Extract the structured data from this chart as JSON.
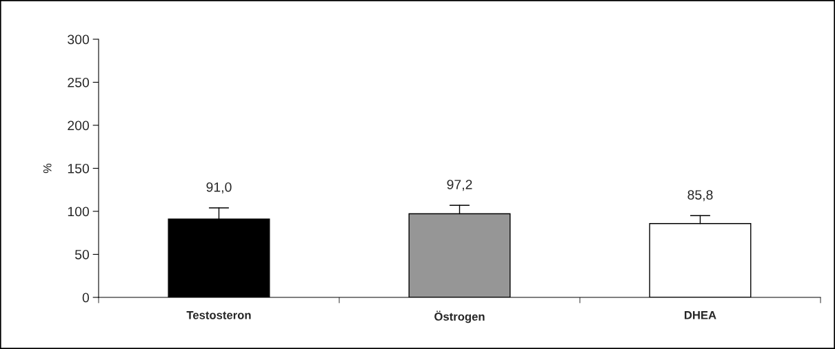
{
  "chart_data": {
    "type": "bar",
    "categories": [
      "Testosteron",
      "Östrogen",
      "DHEA"
    ],
    "values": [
      91.0,
      97.2,
      85.8
    ],
    "colors": [
      "#000000",
      "#969696",
      "#ffffff"
    ],
    "errors": [
      [
        91.0,
        104
      ],
      [
        97.2,
        107
      ],
      [
        85.8,
        95
      ]
    ],
    "value_labels": [
      "91,0",
      "97,2",
      "85,8"
    ],
    "ylabel": "%",
    "ylim": [
      0,
      300
    ],
    "yticks": [
      0,
      50,
      100,
      150,
      200,
      250,
      300
    ],
    "grid": false,
    "legend": false
  }
}
